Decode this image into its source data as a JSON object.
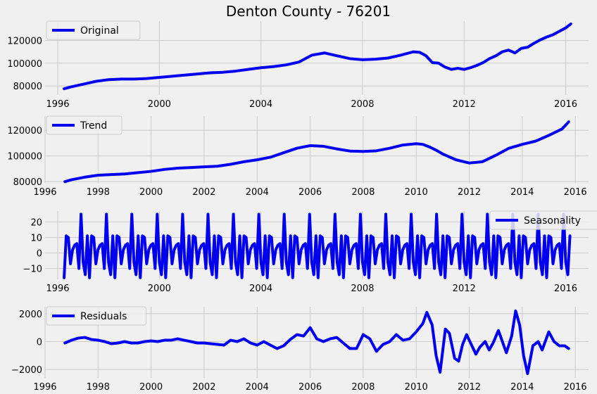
{
  "chart_data": [
    {
      "type": "line",
      "title": "Denton County - 76201",
      "xlim": [
        1995.5,
        2016.9
      ],
      "ylim": [
        72000,
        137000
      ],
      "xticks": [
        1996,
        2000,
        2004,
        2008,
        2012,
        2016
      ],
      "yticks": [
        80000,
        100000,
        120000
      ],
      "grid": true,
      "legend_position": "top-left",
      "color": "#0000ee",
      "series": [
        {
          "name": "Original",
          "x": [
            1996.25,
            1996.5,
            1997.0,
            1997.5,
            1998.0,
            1998.5,
            1999.0,
            1999.5,
            2000.0,
            2000.5,
            2001.0,
            2001.5,
            2002.0,
            2002.5,
            2003.0,
            2003.5,
            2004.0,
            2004.5,
            2005.0,
            2005.5,
            2006.0,
            2006.5,
            2007.0,
            2007.5,
            2008.0,
            2008.5,
            2009.0,
            2009.5,
            2010.0,
            2010.25,
            2010.5,
            2010.75,
            2011.0,
            2011.25,
            2011.5,
            2011.75,
            2012.0,
            2012.25,
            2012.5,
            2012.75,
            2013.0,
            2013.25,
            2013.5,
            2013.75,
            2014.0,
            2014.25,
            2014.5,
            2014.75,
            2015.0,
            2015.25,
            2015.5,
            2015.75,
            2016.0,
            2016.2
          ],
          "values": [
            77500,
            79000,
            81500,
            84000,
            85500,
            86000,
            86000,
            86500,
            87500,
            88500,
            89500,
            90500,
            91500,
            92000,
            93000,
            94500,
            96000,
            97000,
            98500,
            101000,
            107000,
            109000,
            106500,
            104000,
            103000,
            103500,
            104500,
            107000,
            110000,
            109500,
            106500,
            100500,
            100000,
            96500,
            94500,
            95500,
            94500,
            96000,
            98000,
            100500,
            104000,
            106500,
            110000,
            111500,
            109000,
            113000,
            114000,
            117500,
            120500,
            123000,
            125000,
            128000,
            131000,
            134500
          ]
        }
      ]
    },
    {
      "type": "line",
      "xlim": [
        1996.0,
        2016.5
      ],
      "ylim": [
        79000,
        131000
      ],
      "xticks": [
        1996,
        1998,
        2000,
        2002,
        2004,
        2006,
        2008,
        2010,
        2012,
        2014,
        2016
      ],
      "yticks": [
        80000,
        100000,
        120000
      ],
      "grid": true,
      "legend_position": "top-left",
      "color": "#0000ee",
      "series": [
        {
          "name": "Trend",
          "x": [
            1996.75,
            1997.0,
            1997.5,
            1998.0,
            1998.5,
            1999.0,
            1999.5,
            2000.0,
            2000.5,
            2001.0,
            2001.5,
            2002.0,
            2002.5,
            2003.0,
            2003.5,
            2004.0,
            2004.5,
            2005.0,
            2005.5,
            2006.0,
            2006.5,
            2007.0,
            2007.5,
            2008.0,
            2008.5,
            2009.0,
            2009.5,
            2010.0,
            2010.25,
            2010.5,
            2010.75,
            2011.0,
            2011.5,
            2012.0,
            2012.5,
            2013.0,
            2013.5,
            2014.0,
            2014.5,
            2015.0,
            2015.5,
            2015.75
          ],
          "values": [
            80000,
            81500,
            83500,
            85000,
            85500,
            86000,
            87000,
            88000,
            89500,
            90500,
            91000,
            91500,
            92000,
            93500,
            95500,
            97000,
            99000,
            102500,
            106000,
            108000,
            107500,
            105500,
            103800,
            103500,
            104000,
            106000,
            108500,
            109500,
            109000,
            107000,
            104500,
            101500,
            97000,
            94500,
            95500,
            100500,
            106000,
            109000,
            111500,
            116000,
            121000,
            126500
          ]
        }
      ]
    },
    {
      "type": "line",
      "xlim": [
        1995.5,
        2016.9
      ],
      "ylim": [
        -17,
        27
      ],
      "xticks": [
        1996,
        2000,
        2004,
        2008,
        2012,
        2016
      ],
      "yticks": [
        20,
        10,
        0,
        -10
      ],
      "ytick_labels": [
        "20",
        "10",
        "0",
        "−10"
      ],
      "grid": true,
      "legend_position": "top-right",
      "color": "#0000ee",
      "period_start": 1996.25,
      "period_length": 1.0,
      "periods": 20,
      "series": [
        {
          "name": "Seasonality",
          "pattern_offsets": [
            0.0,
            0.08333,
            0.16667,
            0.25,
            0.33333,
            0.41667,
            0.5,
            0.58333,
            0.66667,
            0.75,
            0.83333,
            0.91667
          ],
          "pattern_values": [
            -16,
            11,
            10,
            -7,
            2,
            5,
            6,
            -10,
            25,
            -6,
            -14,
            11
          ]
        }
      ]
    },
    {
      "type": "line",
      "xlim": [
        1996.0,
        2016.5
      ],
      "ylim": [
        -2600,
        2500
      ],
      "xticks": [
        1996,
        1998,
        2000,
        2002,
        2004,
        2006,
        2008,
        2010,
        2012,
        2014,
        2016
      ],
      "yticks": [
        2000,
        0,
        -2000
      ],
      "ytick_labels": [
        "2000",
        "0",
        "−2000"
      ],
      "grid": true,
      "legend_position": "top-left",
      "color": "#0000ee",
      "series": [
        {
          "name": "Residuals",
          "x": [
            1996.75,
            1997.0,
            1997.25,
            1997.5,
            1997.75,
            1998.0,
            1998.25,
            1998.5,
            1998.75,
            1999.0,
            1999.25,
            1999.5,
            1999.75,
            2000.0,
            2000.25,
            2000.5,
            2000.75,
            2001.0,
            2001.25,
            2001.5,
            2001.75,
            2002.0,
            2002.25,
            2002.5,
            2002.75,
            2003.0,
            2003.25,
            2003.5,
            2003.75,
            2004.0,
            2004.25,
            2004.5,
            2004.75,
            2005.0,
            2005.25,
            2005.5,
            2005.75,
            2006.0,
            2006.25,
            2006.5,
            2006.75,
            2007.0,
            2007.25,
            2007.5,
            2007.75,
            2008.0,
            2008.25,
            2008.5,
            2008.75,
            2009.0,
            2009.25,
            2009.5,
            2009.75,
            2010.0,
            2010.25,
            2010.4,
            2010.6,
            2010.75,
            2010.9,
            2011.1,
            2011.25,
            2011.45,
            2011.6,
            2011.75,
            2011.9,
            2012.1,
            2012.25,
            2012.4,
            2012.6,
            2012.75,
            2012.9,
            2013.1,
            2013.25,
            2013.4,
            2013.6,
            2013.75,
            2013.9,
            2014.05,
            2014.2,
            2014.4,
            2014.6,
            2014.75,
            2015.0,
            2015.2,
            2015.4,
            2015.6,
            2015.75
          ],
          "values": [
            -100,
            100,
            250,
            300,
            150,
            100,
            0,
            -150,
            -100,
            0,
            -100,
            -100,
            0,
            50,
            0,
            100,
            100,
            200,
            100,
            0,
            -100,
            -100,
            -150,
            -200,
            -250,
            100,
            0,
            200,
            -100,
            -250,
            0,
            -250,
            -500,
            -300,
            150,
            500,
            400,
            1000,
            200,
            0,
            200,
            300,
            -100,
            -500,
            -500,
            500,
            200,
            -700,
            -200,
            0,
            500,
            100,
            200,
            700,
            1300,
            2100,
            1200,
            -1000,
            -2200,
            900,
            600,
            -1200,
            -1400,
            -200,
            500,
            -300,
            -900,
            -400,
            0,
            -600,
            -100,
            800,
            0,
            -800,
            400,
            2200,
            1200,
            -1000,
            -2300,
            -300,
            0,
            -600,
            700,
            0,
            -300,
            -300,
            -500
          ]
        }
      ]
    }
  ]
}
